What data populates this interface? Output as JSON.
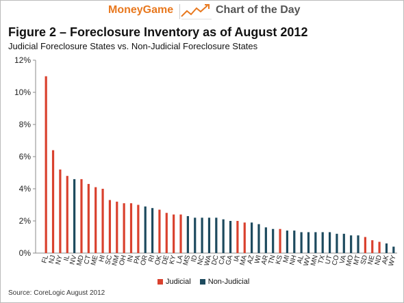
{
  "banner": {
    "brand": "MoneyGame",
    "tagline": "Chart of the Day",
    "icon": "trend-arrow-icon",
    "brand_color": "#e8781e"
  },
  "source": "Source: CoreLogic August 2012",
  "chart_data": {
    "type": "bar",
    "title": "Figure 2 – Foreclosure Inventory as of August 2012",
    "subtitle": "Judicial Foreclosure States vs. Non-Judicial Foreclosure States",
    "xlabel": "",
    "ylabel": "",
    "ylim": [
      0,
      12
    ],
    "yticks": [
      "0%",
      "2%",
      "4%",
      "6%",
      "8%",
      "10%",
      "12%"
    ],
    "grid": false,
    "legend_position": "bottom",
    "legend": [
      {
        "name": "Judicial",
        "color": "#d9412e"
      },
      {
        "name": "Non-Judicial",
        "color": "#1d4a5e"
      }
    ],
    "categories": [
      "FL",
      "NJ",
      "NY",
      "IL",
      "NV",
      "MD",
      "CT",
      "ME",
      "HI",
      "SC",
      "NM",
      "OH",
      "IN",
      "PA",
      "OR",
      "RI",
      "OK",
      "DE",
      "KY",
      "LA",
      "MS",
      "ID",
      "NC",
      "WA",
      "DC",
      "CA",
      "GA",
      "IA",
      "MA",
      "AZ",
      "WI",
      "AR",
      "TN",
      "KS",
      "MI",
      "NH",
      "AL",
      "WV",
      "MN",
      "TX",
      "UT",
      "CO",
      "VA",
      "MO",
      "MT",
      "SD",
      "NE",
      "ND",
      "AK",
      "WY"
    ],
    "values": [
      11.0,
      6.4,
      5.2,
      4.8,
      4.6,
      4.6,
      4.3,
      4.1,
      4.0,
      3.3,
      3.2,
      3.1,
      3.1,
      3.0,
      2.9,
      2.8,
      2.7,
      2.5,
      2.4,
      2.4,
      2.3,
      2.2,
      2.2,
      2.2,
      2.2,
      2.1,
      2.0,
      2.0,
      1.9,
      1.9,
      1.8,
      1.6,
      1.5,
      1.5,
      1.4,
      1.4,
      1.3,
      1.3,
      1.3,
      1.3,
      1.3,
      1.2,
      1.2,
      1.1,
      1.1,
      1.0,
      0.8,
      0.7,
      0.6,
      0.4
    ],
    "kind": [
      "J",
      "J",
      "J",
      "J",
      "N",
      "J",
      "J",
      "J",
      "J",
      "J",
      "J",
      "J",
      "J",
      "J",
      "N",
      "N",
      "J",
      "J",
      "J",
      "J",
      "N",
      "N",
      "N",
      "N",
      "N",
      "N",
      "N",
      "J",
      "J",
      "N",
      "N",
      "N",
      "N",
      "J",
      "N",
      "N",
      "N",
      "N",
      "N",
      "N",
      "N",
      "N",
      "N",
      "N",
      "N",
      "J",
      "J",
      "J",
      "N",
      "N"
    ]
  }
}
